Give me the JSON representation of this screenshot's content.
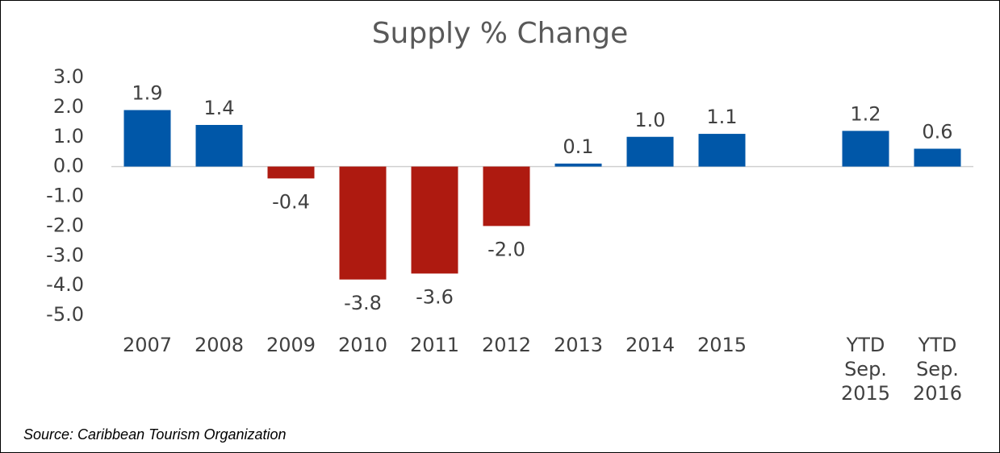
{
  "chart_data": {
    "type": "bar",
    "title": "Supply % Change",
    "categories": [
      "2007",
      "2008",
      "2009",
      "2010",
      "2011",
      "2012",
      "2013",
      "2014",
      "2015",
      null,
      "YTD Sep. 2015",
      "YTD Sep. 2016"
    ],
    "values": [
      1.9,
      1.4,
      -0.4,
      -3.8,
      -3.6,
      -2.0,
      0.1,
      1.0,
      1.1,
      null,
      1.2,
      0.6
    ],
    "value_labels": [
      "1.9",
      "1.4",
      "-0.4",
      "-3.8",
      "-3.6",
      "-2.0",
      "0.1",
      "1.0",
      "1.1",
      null,
      "1.2",
      "0.6"
    ],
    "positive_color": "#0057a8",
    "negative_color": "#ae1a10",
    "ylim": [
      -5,
      3
    ],
    "yticks": [
      {
        "value": 3,
        "label": "3.0"
      },
      {
        "value": 2,
        "label": "2.0"
      },
      {
        "value": 1,
        "label": "1.0"
      },
      {
        "value": 0,
        "label": "0.0"
      },
      {
        "value": -1,
        "label": "-1.0"
      },
      {
        "value": -2,
        "label": "-2.0"
      },
      {
        "value": -3,
        "label": "-3.0"
      },
      {
        "value": -4,
        "label": "-4.0"
      },
      {
        "value": -5,
        "label": "-5.0"
      }
    ],
    "source": "Source: Caribbean Tourism Organization"
  }
}
